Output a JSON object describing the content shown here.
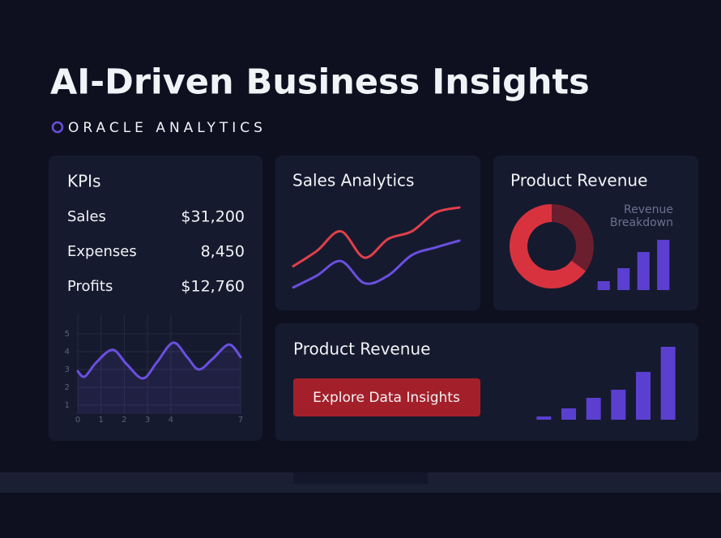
{
  "header": {
    "title": "AI-Driven Business Insights",
    "subtitle": "ORACLE ANALYTICS"
  },
  "kpis": {
    "title": "KPIs",
    "rows": [
      [
        "Sales",
        "$31,200"
      ],
      [
        "Expenses",
        "8,450"
      ],
      [
        "Profits",
        "$12,760"
      ]
    ]
  },
  "button": {
    "label": "Explore Data Insights"
  },
  "chart_data": [
    {
      "type": "line",
      "x": [
        0,
        0.3,
        0.8,
        1.5,
        2.1,
        2.8,
        3.4,
        4.1,
        4.7,
        5.2,
        5.8,
        6.5,
        7
      ],
      "series": [
        {
          "color": "#6a4fe0",
          "values": [
            2.9,
            2.6,
            3.4,
            4.1,
            3.3,
            2.5,
            3.4,
            4.5,
            3.7,
            3.0,
            3.6,
            4.4,
            3.7
          ]
        }
      ],
      "xlim": [
        0,
        7
      ],
      "ylim": [
        0.5,
        5.5
      ],
      "xticks": [
        0,
        1,
        2,
        3,
        4,
        7
      ],
      "yticks": [
        1,
        2,
        3,
        4,
        5
      ],
      "grid": true
    },
    {
      "type": "line",
      "title": "Sales Analytics",
      "ylim": [
        0,
        100
      ],
      "series": [
        {
          "color": "#e0404a",
          "values": [
            30,
            48,
            71,
            40,
            62,
            71,
            93,
            99
          ]
        },
        {
          "color": "#6a4fe0",
          "values": [
            5,
            19,
            36,
            10,
            19,
            43,
            52,
            60
          ]
        }
      ]
    },
    {
      "type": "pie",
      "title": "Product Revenue",
      "subtitle": "Revenue Breakdown",
      "donut": true,
      "values": [
        35,
        65
      ],
      "colors": [
        "#6b1f2e",
        "#d9323f"
      ]
    },
    {
      "type": "bar",
      "values": [
        11,
        27,
        47,
        62
      ],
      "ylim": [
        0,
        70
      ],
      "color": "#5a3fd0"
    },
    {
      "type": "bar",
      "title": "Product Revenue",
      "values": [
        4,
        14,
        27,
        37,
        59,
        90
      ],
      "ylim": [
        0,
        100
      ],
      "color": "#5a3fd0"
    }
  ]
}
